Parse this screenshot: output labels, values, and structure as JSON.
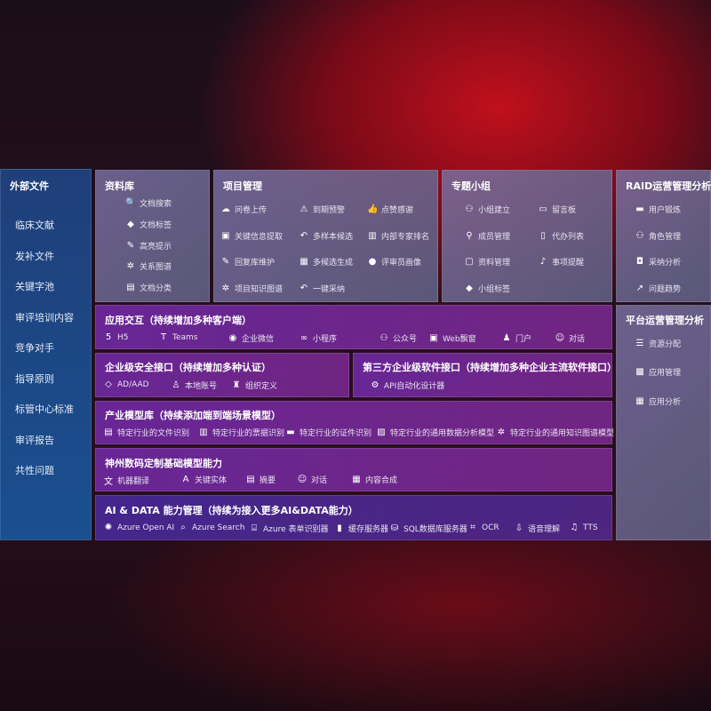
{
  "sidebar": {
    "title": "外部文件",
    "items": [
      "临床文献",
      "发补文件",
      "关键字池",
      "审评培训内容",
      "竞争对手",
      "指导原则",
      "标管中心标准",
      "审评报告",
      "共性问题"
    ]
  },
  "library": {
    "title": "资料库",
    "items": [
      {
        "icon": "file-search-icon",
        "label": "文档搜索"
      },
      {
        "icon": "tag-icon",
        "label": "文档标签"
      },
      {
        "icon": "pen-icon",
        "label": "高亮提示"
      },
      {
        "icon": "graph-icon",
        "label": "关系图谱"
      },
      {
        "icon": "doc-classify-icon",
        "label": "文档分类"
      }
    ]
  },
  "project": {
    "title": "项目管理",
    "items": [
      {
        "icon": "cloud-upload-icon",
        "label": "问卷上传"
      },
      {
        "icon": "alarm-icon",
        "label": "到期预警"
      },
      {
        "icon": "thumbs-up-icon",
        "label": "点赞感谢"
      },
      {
        "icon": "window-icon",
        "label": "关键信息提取"
      },
      {
        "icon": "reply-icon",
        "label": "多样本候选"
      },
      {
        "icon": "ranking-icon",
        "label": "内部专家排名"
      },
      {
        "icon": "edit-icon",
        "label": "回复库维护"
      },
      {
        "icon": "puzzle-icon",
        "label": "多候选生成"
      },
      {
        "icon": "user-icon",
        "label": "评审员画像"
      },
      {
        "icon": "network-icon",
        "label": "项目知识图谱"
      },
      {
        "icon": "reply-icon",
        "label": "一键采纳"
      }
    ]
  },
  "group": {
    "title": "专题小组",
    "items": [
      {
        "icon": "users-icon",
        "label": "小组建立"
      },
      {
        "icon": "bbs-icon",
        "label": "留言板"
      },
      {
        "icon": "user-add-icon",
        "label": "成员管理"
      },
      {
        "icon": "clipboard-icon",
        "label": "代办列表"
      },
      {
        "icon": "folder-icon",
        "label": "资料管理"
      },
      {
        "icon": "bell-icon",
        "label": "事项提醒"
      },
      {
        "icon": "tag-icon",
        "label": "小组标签"
      }
    ]
  },
  "raid": {
    "title": "RAID运营管理分析",
    "items": [
      {
        "icon": "id-card-icon",
        "label": "用户锻炼"
      },
      {
        "icon": "users-icon",
        "label": "角色管理"
      },
      {
        "icon": "qa-icon",
        "label": "采纳分析"
      },
      {
        "icon": "trend-icon",
        "label": "问题趋势"
      }
    ]
  },
  "platform": {
    "title": "平台运营管理分析",
    "items": [
      {
        "icon": "list-icon",
        "label": "资源分配"
      },
      {
        "icon": "apps-icon",
        "label": "应用管理"
      },
      {
        "icon": "chart-icon",
        "label": "应用分析"
      }
    ]
  },
  "apps": {
    "title": "应用交互（持续增加多种客户端）",
    "items": [
      {
        "icon": "html5-icon",
        "label": "H5"
      },
      {
        "icon": "teams-icon",
        "label": "Teams"
      },
      {
        "icon": "wechat-icon",
        "label": "企业微信"
      },
      {
        "icon": "miniprogram-icon",
        "label": "小程序"
      },
      {
        "icon": "users-icon",
        "label": "公众号"
      },
      {
        "icon": "window-icon",
        "label": "Web飘窗"
      },
      {
        "icon": "portal-icon",
        "label": "门户"
      },
      {
        "icon": "chat-icon",
        "label": "对话"
      }
    ]
  },
  "security": {
    "title": "企业级安全接口（持续增加多种认证）",
    "items": [
      {
        "icon": "ad-icon",
        "label": "AD/AAD"
      },
      {
        "icon": "account-icon",
        "label": "本地账号"
      },
      {
        "icon": "org-icon",
        "label": "组织定义"
      }
    ]
  },
  "thirdparty": {
    "title": "第三方企业级软件接口（持续增加多种企业主流软件接口）",
    "items": [
      {
        "icon": "gear-icon",
        "label": "API自动化设计器"
      }
    ]
  },
  "industry": {
    "title": "产业模型库（持续添加端到端场景模型）",
    "items": [
      {
        "icon": "doc-icon",
        "label": "特定行业的文件识别"
      },
      {
        "icon": "receipt-icon",
        "label": "特定行业的票据识别"
      },
      {
        "icon": "id-card-icon",
        "label": "特定行业的证件识别"
      },
      {
        "icon": "image-icon",
        "label": "特定行业的通用数据分析模型"
      },
      {
        "icon": "network-icon",
        "label": "特定行业的通用知识图谱模型"
      }
    ]
  },
  "base": {
    "title": "神州数码定制基础模型能力",
    "items": [
      {
        "icon": "translate-icon",
        "label": "机器翻译"
      },
      {
        "icon": "entity-icon",
        "label": "关键实体"
      },
      {
        "icon": "summary-icon",
        "label": "摘要"
      },
      {
        "icon": "chat-icon",
        "label": "对话"
      },
      {
        "icon": "puzzle-icon",
        "label": "内容合成"
      }
    ]
  },
  "aidata": {
    "title": "AI & DATA 能力管理（持续为接入更多AI&DATA能力）",
    "items": [
      {
        "icon": "openai-icon",
        "label": "Azure Open AI"
      },
      {
        "icon": "search-icon",
        "label": "Azure Search"
      },
      {
        "icon": "form-icon",
        "label": "Azure 表单识别器"
      },
      {
        "icon": "cache-icon",
        "label": "缓存服务器"
      },
      {
        "icon": "sql-icon",
        "label": "SQL数据库服务器"
      },
      {
        "icon": "ocr-icon",
        "label": "OCR"
      },
      {
        "icon": "speech-icon",
        "label": "语音理解"
      },
      {
        "icon": "tts-icon",
        "label": "TTS"
      }
    ]
  }
}
